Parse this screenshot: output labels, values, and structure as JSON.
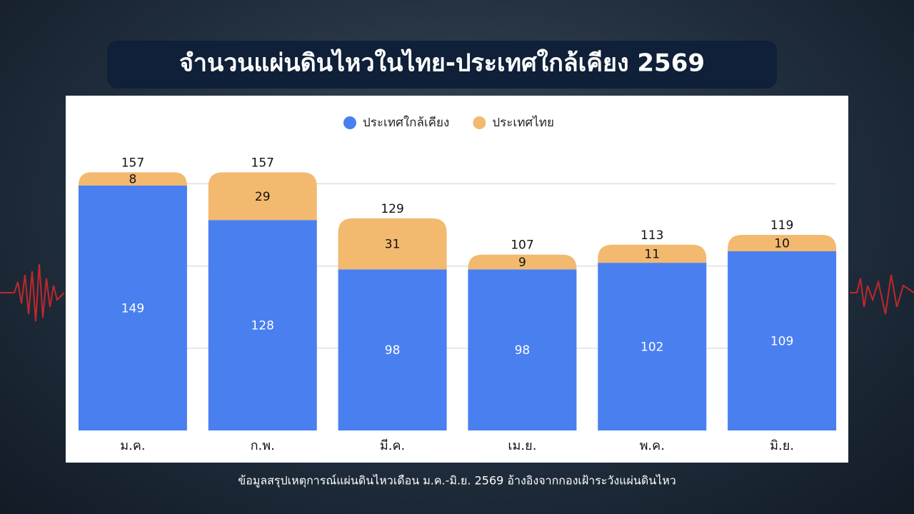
{
  "chart_data": {
    "type": "stacked_bar",
    "title": "จำนวนแผ่นดินไหวในไทย-ประเทศใกล้เคียง 2569",
    "categories": [
      "ม.ค.",
      "ก.พ.",
      "มี.ค.",
      "เม.ย.",
      "พ.ค.",
      "มิ.ย."
    ],
    "series": [
      {
        "name": "ประเทศใกล้เคียง",
        "color": "#4a7ff0",
        "values": [
          149,
          128,
          98,
          98,
          102,
          109
        ]
      },
      {
        "name": "ประเทศไทย",
        "color": "#f2b96f",
        "values": [
          8,
          29,
          31,
          9,
          11,
          10
        ]
      }
    ],
    "totals": [
      157,
      157,
      129,
      107,
      113,
      119
    ],
    "ylim": [
      0,
      165
    ],
    "yticks": [
      50,
      100,
      150
    ],
    "grid": true,
    "legend": "top",
    "note": "ข้อมูลสรุปเหตุการณ์แผ่นดินไหวเดือน ม.ค.-มิ.ย. 2569 อ้างอิงจากกองเฝ้าระวังแผ่นดินไหว"
  }
}
